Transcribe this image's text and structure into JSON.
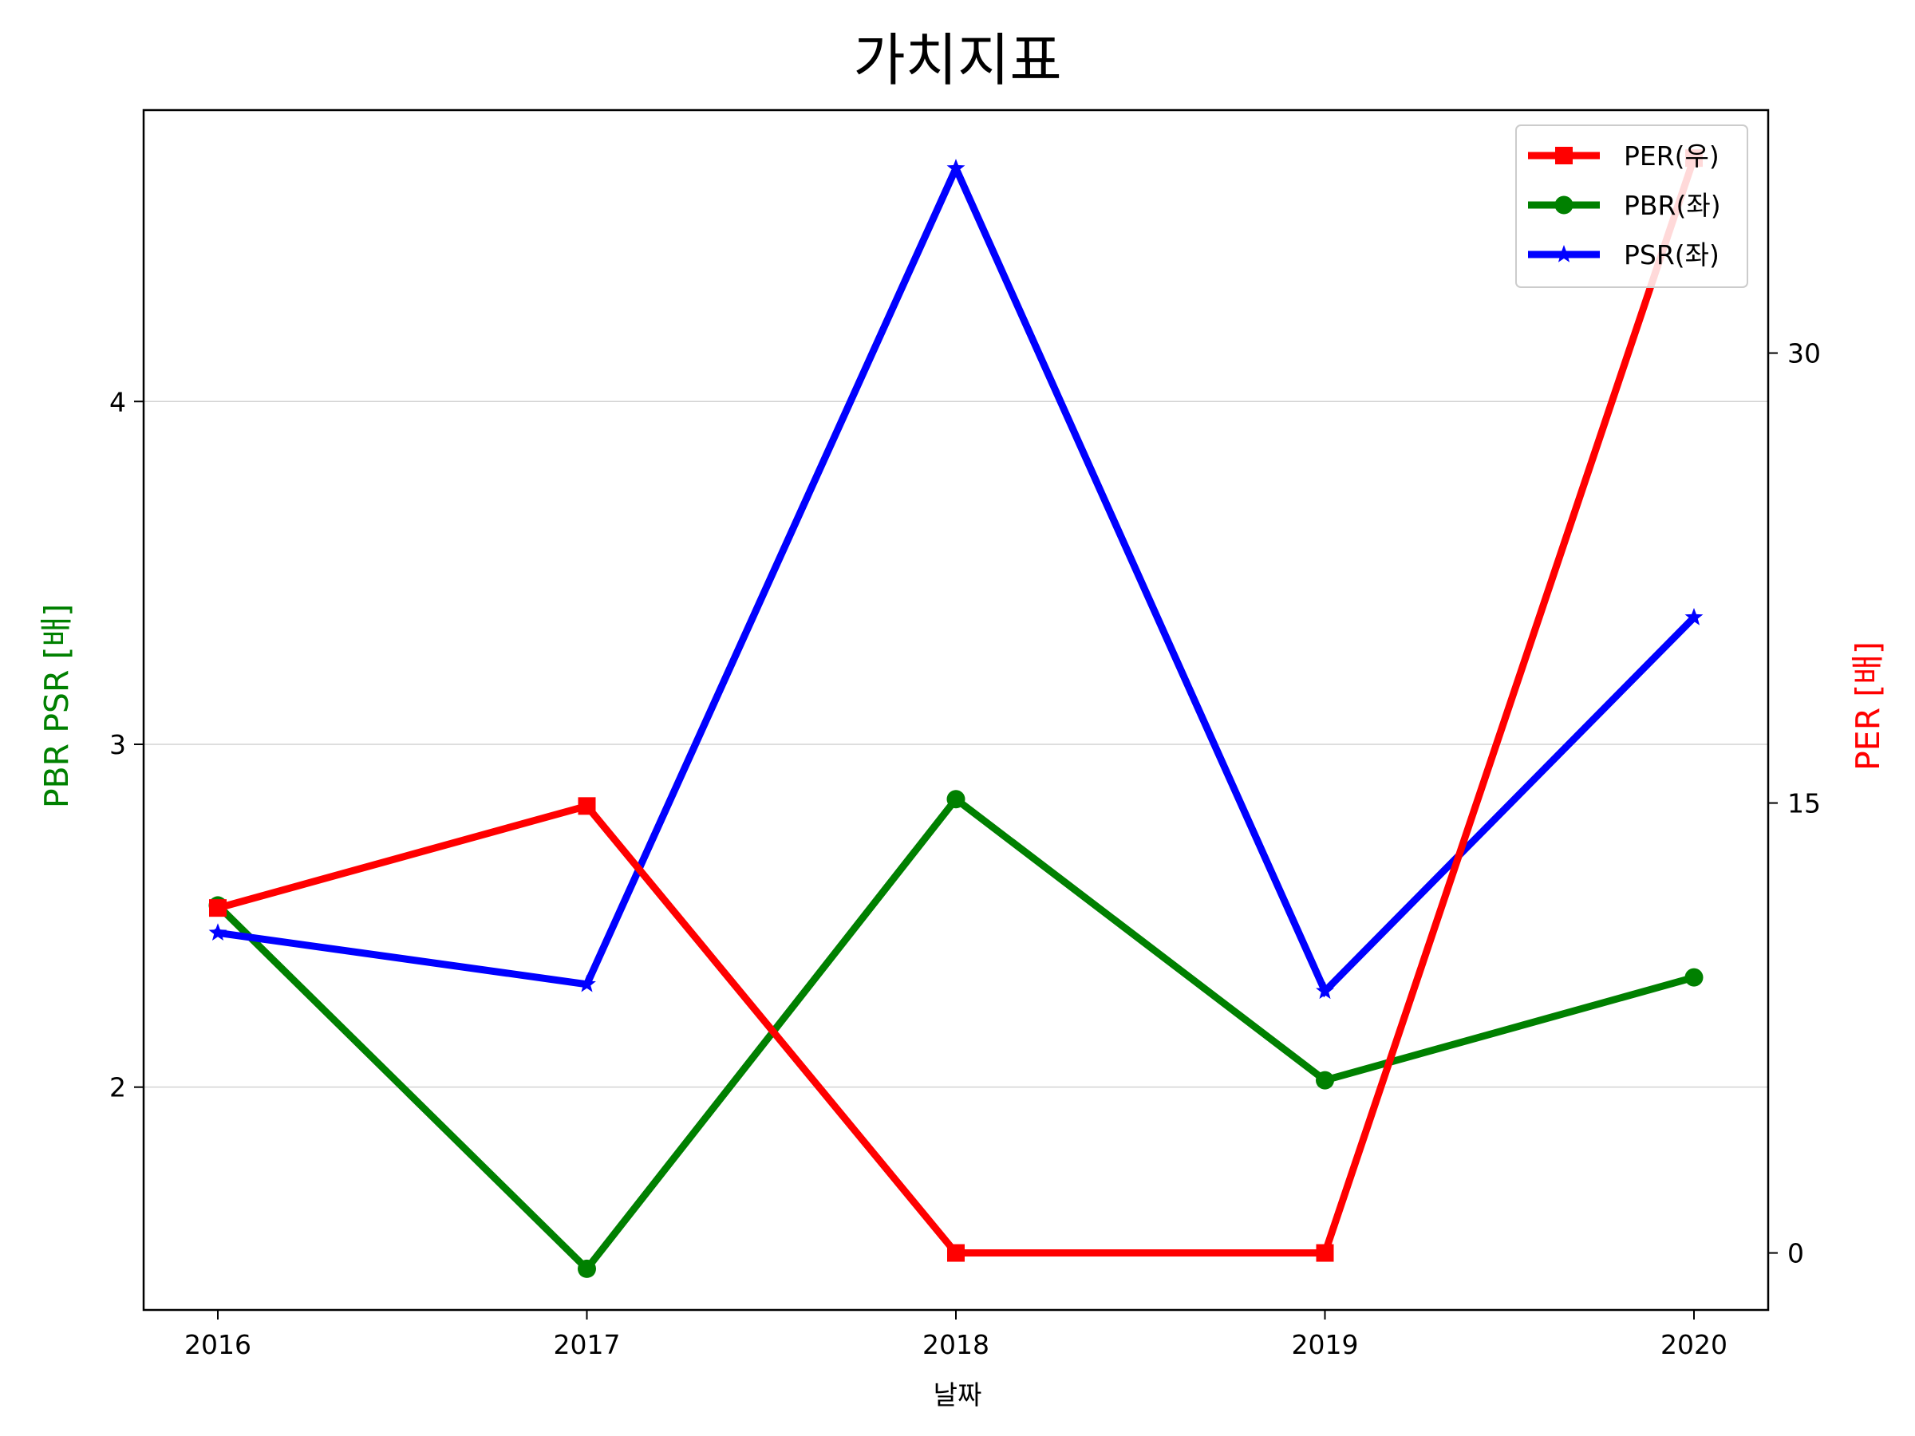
{
  "chart_data": {
    "type": "line",
    "title": "가치지표",
    "xlabel": "날짜",
    "ylabel_left": "PBR PSR [배]",
    "ylabel_right": "PER [배]",
    "categories": [
      "2016",
      "2017",
      "2018",
      "2019",
      "2020"
    ],
    "left_axis": {
      "ylim": [
        1.35,
        4.85
      ],
      "ticks": [
        2,
        3,
        4
      ],
      "grid": true,
      "label_color": "#008000"
    },
    "right_axis": {
      "ylim": [
        -1.9,
        38.1
      ],
      "ticks": [
        0,
        15,
        30
      ],
      "label_color": "#ff0000"
    },
    "series": [
      {
        "name": "PER(우)",
        "axis": "right",
        "color": "#ff0000",
        "marker": "square",
        "values": [
          11.5,
          14.9,
          0.0,
          0.0,
          36.5
        ]
      },
      {
        "name": "PBR(좌)",
        "axis": "left",
        "color": "#008000",
        "marker": "circle",
        "values": [
          2.53,
          1.47,
          2.84,
          2.02,
          2.32
        ]
      },
      {
        "name": "PSR(좌)",
        "axis": "left",
        "color": "#0000ff",
        "marker": "star",
        "values": [
          2.45,
          2.3,
          4.68,
          2.28,
          3.37
        ]
      }
    ],
    "legend_position": "top-right"
  }
}
